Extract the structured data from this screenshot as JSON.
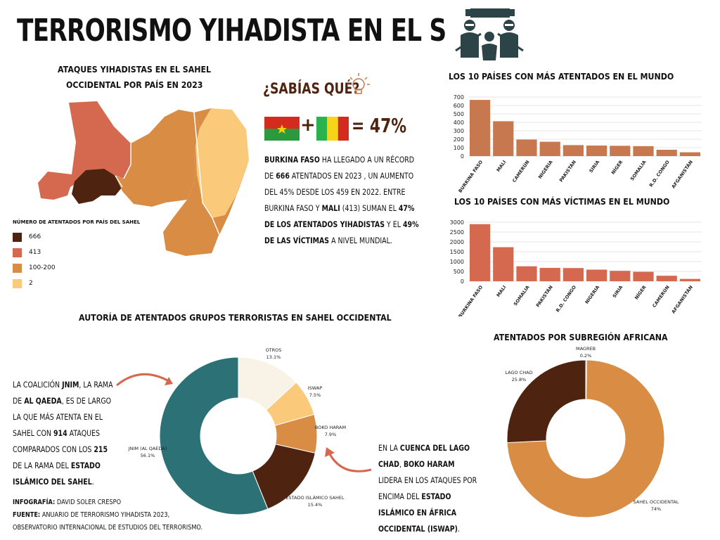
{
  "title": "TERRORISMO YIHADISTA EN EL SAHEL",
  "map_section": {
    "title_line1": "ATAQUES YIHADISTAS EN EL SAHEL",
    "title_line2": "OCCIDENTAL POR PAÍS EN 2023",
    "legend_title": "Número de atentados por país del Sahel",
    "legend": [
      {
        "label": "666",
        "color": "#4e2410"
      },
      {
        "label": "413",
        "color": "#d4694f"
      },
      {
        "label": "100-200",
        "color": "#d88c44"
      },
      {
        "label": "2",
        "color": "#fbc97a"
      }
    ]
  },
  "did_you_know": {
    "heading": "¿SABÍAS QUÉ?",
    "plus": "+",
    "equals": "= 47%",
    "paragraph": [
      {
        "text": "BURKINA FASO",
        "bold": true
      },
      {
        "text": " HA LLEGADO A UN RÉCORD DE ",
        "bold": false
      },
      {
        "text": "666",
        "bold": true
      },
      {
        "text": " ATENTADOS EN 2023 , UN AUMENTO DEL 45% DESDE LOS 459 EN 2022. ENTRE BURKINA FASO Y ",
        "bold": false
      },
      {
        "text": "MALI",
        "bold": true
      },
      {
        "text": " (413) SUMAN EL ",
        "bold": false
      },
      {
        "text": "47% DE LOS ATENTADOS YIHADISTAS",
        "bold": true
      },
      {
        "text": " Y EL ",
        "bold": false
      },
      {
        "text": "49%  DE LAS VÍCTIMAS",
        "bold": true
      },
      {
        "text": " A NIVEL MUNDIAL.",
        "bold": false
      }
    ]
  },
  "authorship_title": "AUTORÍA DE ATENTADOS GRUPOS TERRORISTAS EN SAHEL OCCIDENTAL",
  "jnim_note": [
    {
      "text": "LA COALICIÓN ",
      "bold": false
    },
    {
      "text": "JNIM",
      "bold": true
    },
    {
      "text": ", LA RAMA DE ",
      "bold": false
    },
    {
      "text": "AL QAEDA",
      "bold": true
    },
    {
      "text": ", ES DE LARGO LA QUE MÁS ATENTA EN EL SAHEL CON ",
      "bold": false
    },
    {
      "text": "914",
      "bold": true
    },
    {
      "text": " ATAQUES COMPARADOS CON LOS ",
      "bold": false
    },
    {
      "text": "215",
      "bold": true
    },
    {
      "text": " DE LA RAMA DEL ",
      "bold": false
    },
    {
      "text": "ESTADO ISLÁMICO DEL SAHEL",
      "bold": true
    },
    {
      "text": ".",
      "bold": false
    }
  ],
  "chad_note": [
    {
      "text": "EN LA ",
      "bold": false
    },
    {
      "text": "CUENCA DEL LAGO CHAD",
      "bold": true
    },
    {
      "text": ", ",
      "bold": false
    },
    {
      "text": "BOKO HARAM",
      "bold": true
    },
    {
      "text": " LIDERA EN LOS ATAQUES POR ENCIMA DEL ",
      "bold": false
    },
    {
      "text": "ESTADO ISLÁMICO EN ÁFRICA OCCIDENTAL (ISWAP)",
      "bold": true
    },
    {
      "text": ".",
      "bold": false
    }
  ],
  "credits": {
    "infografia_label": "INFOGRAFÍA:",
    "infografia_value": " DAVID SOLER CRESPO",
    "fuente_label": "FUENTE:",
    "fuente_value": " ANUARIO DE TERRORISMO YIHADISTA 2023,",
    "fuente_line2": "OBSERVATORIO INTERNACIONAL DE ESTUDIOS DEL TERRORISMO."
  },
  "colors": {
    "bar_attacks": "#c8784e",
    "bar_victims": "#d4694f",
    "arrow": "#d4694f"
  },
  "chart_data": [
    {
      "type": "bar",
      "title": "LOS 10 PAÍSES CON MÁS ATENTADOS EN EL MUNDO",
      "categories": [
        "BURKINA FASO",
        "MALI",
        "CAMERÚN",
        "NIGERIA",
        "PAKISTÁN",
        "SIRIA",
        "NÍGER",
        "SOMALIA",
        "R.D. CONGO",
        "AFGANISTÁN"
      ],
      "values": [
        666,
        413,
        196,
        170,
        130,
        125,
        122,
        118,
        75,
        45
      ],
      "ylim": [
        0,
        700
      ],
      "yticks": [
        0,
        100,
        200,
        300,
        400,
        500,
        600,
        700
      ],
      "grid": true
    },
    {
      "type": "bar",
      "title": "LOS 10 PAÍSES CON MÁS VÍCTIMAS EN EL MUNDO",
      "categories": [
        "BURKINA FASO",
        "MALI",
        "SOMALIA",
        "PAKISTÁN",
        "R.D. CONGO",
        "NIGERIA",
        "SIRIA",
        "NÍGER",
        "CAMERÚN",
        "AFGANISTÁN"
      ],
      "values": [
        2900,
        1730,
        760,
        680,
        670,
        590,
        530,
        480,
        280,
        120
      ],
      "ylim": [
        0,
        3000
      ],
      "yticks": [
        0,
        500,
        1000,
        1500,
        2000,
        2500,
        3000
      ],
      "grid": true
    },
    {
      "type": "pie",
      "title": "AUTORÍA DE ATENTADOS GRUPOS TERRORISTAS EN SAHEL OCCIDENTAL",
      "donut": true,
      "slices": [
        {
          "label": "OTROS",
          "value": 13.1,
          "display": "13.1%",
          "color": "#f8f3e6"
        },
        {
          "label": "ISWAP",
          "value": 7.5,
          "display": "7.5%",
          "color": "#fbc97a"
        },
        {
          "label": "BOKO HARAM",
          "value": 7.9,
          "display": "7.9%",
          "color": "#d88c44"
        },
        {
          "label": "ESTADO ISLÁMICO SAHEL",
          "value": 15.4,
          "display": "15.4%",
          "color": "#4e2410"
        },
        {
          "label": "JNIM (AL QAEDA)",
          "value": 56.1,
          "display": "56.1%",
          "color": "#2c7176"
        }
      ]
    },
    {
      "type": "pie",
      "title": "ATENTADOS POR SUBREGIÓN AFRICANA",
      "donut": true,
      "slices": [
        {
          "label": "MAGREB",
          "value": 0.2,
          "display": "0.2%",
          "color": "#2c7176"
        },
        {
          "label": "SAHEL OCCIDENTAL",
          "value": 74,
          "display": "74%",
          "color": "#d88c44"
        },
        {
          "label": "LAGO CHAD",
          "value": 25.8,
          "display": "25.8%",
          "color": "#4e2410"
        }
      ]
    }
  ]
}
